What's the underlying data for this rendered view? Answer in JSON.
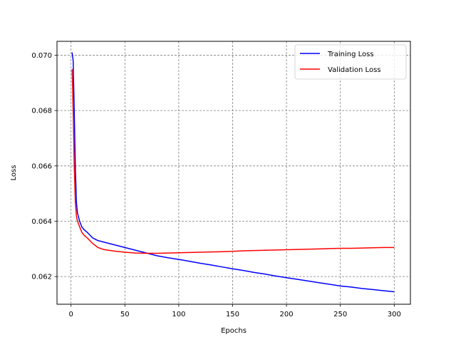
{
  "chart_data": {
    "type": "line",
    "title": "",
    "xlabel": "Epochs",
    "ylabel": "Loss",
    "xlim": [
      -13,
      315
    ],
    "ylim": [
      0.061,
      0.0705
    ],
    "x_ticks": [
      0,
      50,
      100,
      150,
      200,
      250,
      300
    ],
    "y_ticks": [
      0.062,
      0.064,
      0.066,
      0.068,
      0.07
    ],
    "x_tick_labels": [
      "0",
      "50",
      "100",
      "150",
      "200",
      "250",
      "300"
    ],
    "y_tick_labels": [
      "0.062",
      "0.064",
      "0.066",
      "0.068",
      "0.070"
    ],
    "grid": true,
    "grid_style": "dashed",
    "legend_position": "top-right",
    "series": [
      {
        "name": "Training Loss",
        "color": "#0000ff",
        "x": [
          1,
          2,
          3,
          4,
          5,
          6,
          8,
          10,
          12,
          15,
          20,
          25,
          30,
          40,
          50,
          60,
          70,
          80,
          90,
          100,
          110,
          120,
          130,
          140,
          150,
          160,
          170,
          180,
          190,
          200,
          210,
          220,
          230,
          240,
          250,
          260,
          270,
          280,
          290,
          300
        ],
        "y": [
          0.0701,
          0.0698,
          0.068,
          0.066,
          0.0647,
          0.0643,
          0.064,
          0.0638,
          0.0637,
          0.0636,
          0.0634,
          0.0633,
          0.06325,
          0.06315,
          0.06305,
          0.06295,
          0.06285,
          0.06275,
          0.06268,
          0.06262,
          0.06255,
          0.06248,
          0.06242,
          0.06235,
          0.06228,
          0.06222,
          0.06215,
          0.06209,
          0.06202,
          0.06196,
          0.0619,
          0.06184,
          0.06178,
          0.06172,
          0.06166,
          0.06162,
          0.06157,
          0.06153,
          0.06149,
          0.06145
        ]
      },
      {
        "name": "Validation Loss",
        "color": "#ff0000",
        "x": [
          1,
          2,
          3,
          4,
          5,
          6,
          8,
          10,
          12,
          15,
          20,
          25,
          30,
          40,
          50,
          60,
          70,
          80,
          90,
          100,
          110,
          120,
          130,
          140,
          150,
          160,
          170,
          180,
          190,
          200,
          210,
          220,
          230,
          240,
          250,
          260,
          270,
          280,
          290,
          300
        ],
        "y": [
          0.0695,
          0.068,
          0.066,
          0.0647,
          0.0642,
          0.064,
          0.0638,
          0.0636,
          0.0635,
          0.0634,
          0.0632,
          0.06305,
          0.06298,
          0.06292,
          0.06288,
          0.06285,
          0.06284,
          0.06284,
          0.06285,
          0.06286,
          0.06287,
          0.06288,
          0.06289,
          0.0629,
          0.06291,
          0.06293,
          0.06294,
          0.06295,
          0.06296,
          0.06297,
          0.06298,
          0.06299,
          0.063,
          0.06301,
          0.06302,
          0.06302,
          0.06303,
          0.06304,
          0.06305,
          0.06305
        ]
      }
    ]
  }
}
